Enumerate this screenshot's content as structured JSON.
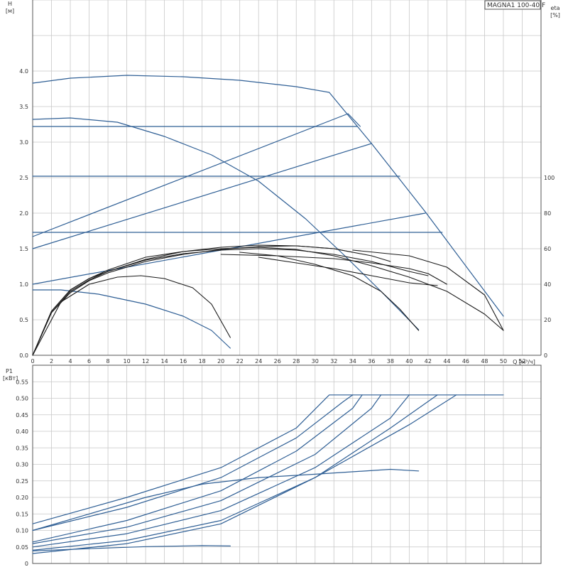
{
  "model_label": "MAGNA1 100-40 F",
  "colors": {
    "grid": "#c8c8c8",
    "axis": "#555555",
    "curve_blue": "#2f5f95",
    "curve_dark": "#1a1a1a"
  },
  "chart_data": [
    {
      "type": "line",
      "panel": "head-and-efficiency",
      "xlabel": "Q [м³/ч]",
      "ylabel": "H [м]",
      "y2label": "eta [%]",
      "xlim": [
        0,
        54
      ],
      "ylim": [
        0,
        5.0
      ],
      "y2lim": [
        0,
        200
      ],
      "x_ticks": [
        "0",
        "2",
        "4",
        "6",
        "8",
        "10",
        "12",
        "14",
        "16",
        "18",
        "20",
        "22",
        "24",
        "26",
        "28",
        "30",
        "32",
        "34",
        "36",
        "38",
        "40",
        "42",
        "44",
        "46",
        "48",
        "50",
        "52"
      ],
      "y_ticks": [
        "0.0",
        "0.5",
        "1.0",
        "1.5",
        "2.0",
        "2.5",
        "3.0",
        "3.5",
        "4.0"
      ],
      "y2_ticks": [
        "0",
        "20",
        "40",
        "60",
        "80",
        "100"
      ],
      "series": [
        {
          "color": "blue",
          "points": [
            [
              0,
              3.83
            ],
            [
              4,
              3.9
            ],
            [
              10,
              3.94
            ],
            [
              16,
              3.92
            ],
            [
              22,
              3.87
            ],
            [
              28,
              3.78
            ],
            [
              31.5,
              3.7
            ],
            [
              36,
              2.98
            ],
            [
              41.7,
              2.02
            ],
            [
              50,
              0.55
            ]
          ]
        },
        {
          "color": "blue",
          "points": [
            [
              0,
              3.32
            ],
            [
              4,
              3.34
            ],
            [
              9,
              3.28
            ],
            [
              14,
              3.08
            ],
            [
              19,
              2.82
            ],
            [
              24,
              2.45
            ],
            [
              29,
              1.92
            ],
            [
              33,
              1.42
            ],
            [
              37,
              0.9
            ],
            [
              41,
              0.36
            ]
          ]
        },
        {
          "color": "blue",
          "points": [
            [
              0,
              0.92
            ],
            [
              3,
              0.92
            ],
            [
              7,
              0.86
            ],
            [
              12,
              0.72
            ],
            [
              16,
              0.55
            ],
            [
              19,
              0.35
            ],
            [
              21,
              0.1
            ]
          ]
        },
        {
          "color": "blue",
          "points": [
            [
              0,
              3.22
            ],
            [
              34.5,
              3.22
            ]
          ]
        },
        {
          "color": "blue",
          "points": [
            [
              0,
              2.52
            ],
            [
              39,
              2.52
            ]
          ]
        },
        {
          "color": "blue",
          "points": [
            [
              0,
              1.73
            ],
            [
              43.5,
              1.73
            ]
          ]
        },
        {
          "color": "blue",
          "points": [
            [
              0,
              1.67
            ],
            [
              33.5,
              3.4
            ],
            [
              34.8,
              3.22
            ]
          ]
        },
        {
          "color": "blue",
          "points": [
            [
              0,
              1.5
            ],
            [
              36,
              2.98
            ]
          ]
        },
        {
          "color": "blue",
          "points": [
            [
              0,
              1.0
            ],
            [
              41.7,
              2.0
            ]
          ]
        },
        {
          "color": "dark",
          "points": [
            [
              0,
              0.0
            ],
            [
              2,
              0.62
            ],
            [
              4,
              0.92
            ],
            [
              6,
              1.08
            ],
            [
              8,
              1.2
            ],
            [
              12,
              1.38
            ],
            [
              16,
              1.46
            ],
            [
              20,
              1.5
            ],
            [
              24,
              1.52
            ],
            [
              28,
              1.49
            ],
            [
              32,
              1.4
            ],
            [
              36,
              1.26
            ],
            [
              40,
              1.1
            ],
            [
              44,
              0.9
            ],
            [
              48,
              0.58
            ],
            [
              50,
              0.35
            ]
          ]
        },
        {
          "color": "dark",
          "points": [
            [
              0,
              0.0
            ],
            [
              2,
              0.6
            ],
            [
              4,
              0.9
            ],
            [
              6,
              1.06
            ],
            [
              8,
              1.18
            ],
            [
              12,
              1.35
            ],
            [
              16,
              1.46
            ],
            [
              20,
              1.52
            ],
            [
              24,
              1.55
            ],
            [
              28,
              1.54
            ],
            [
              32,
              1.5
            ],
            [
              36,
              1.4
            ],
            [
              38,
              1.32
            ]
          ]
        },
        {
          "color": "dark",
          "points": [
            [
              0,
              0.0
            ],
            [
              2,
              0.6
            ],
            [
              4,
              0.88
            ],
            [
              6,
              1.05
            ],
            [
              8,
              1.16
            ],
            [
              12,
              1.32
            ],
            [
              16,
              1.42
            ],
            [
              20,
              1.49
            ],
            [
              24,
              1.53
            ],
            [
              28,
              1.54
            ],
            [
              32,
              1.5
            ],
            [
              34,
              1.45
            ]
          ]
        },
        {
          "color": "dark",
          "points": [
            [
              0,
              0.0
            ],
            [
              2,
              0.62
            ],
            [
              4,
              0.92
            ],
            [
              6,
              1.08
            ],
            [
              8,
              1.18
            ],
            [
              12,
              1.34
            ],
            [
              16,
              1.43
            ],
            [
              20,
              1.48
            ],
            [
              24,
              1.5
            ],
            [
              28,
              1.48
            ],
            [
              32,
              1.42
            ],
            [
              36,
              1.32
            ],
            [
              40,
              1.18
            ],
            [
              42,
              1.12
            ]
          ]
        },
        {
          "color": "dark",
          "points": [
            [
              0,
              0.0
            ],
            [
              3,
              0.75
            ],
            [
              6,
              1.0
            ],
            [
              9,
              1.1
            ],
            [
              11.5,
              1.12
            ],
            [
              14,
              1.08
            ],
            [
              17,
              0.95
            ],
            [
              19,
              0.72
            ],
            [
              21,
              0.25
            ]
          ]
        },
        {
          "color": "dark",
          "points": [
            [
              22,
              1.45
            ],
            [
              26,
              1.4
            ],
            [
              30,
              1.28
            ],
            [
              34,
              1.12
            ],
            [
              37,
              0.9
            ],
            [
              39,
              0.65
            ],
            [
              41,
              0.35
            ]
          ]
        },
        {
          "color": "dark",
          "points": [
            [
              24,
              1.38
            ],
            [
              28,
              1.3
            ],
            [
              32,
              1.22
            ],
            [
              36,
              1.12
            ],
            [
              40,
              1.02
            ],
            [
              43,
              0.98
            ]
          ]
        },
        {
          "color": "dark",
          "points": [
            [
              20,
              1.42
            ],
            [
              26,
              1.4
            ],
            [
              32,
              1.36
            ],
            [
              36,
              1.3
            ],
            [
              40,
              1.22
            ],
            [
              42,
              1.15
            ],
            [
              44,
              1.0
            ]
          ]
        },
        {
          "color": "dark",
          "points": [
            [
              34,
              1.48
            ],
            [
              40,
              1.4
            ],
            [
              44,
              1.24
            ],
            [
              48,
              0.85
            ],
            [
              50,
              0.35
            ]
          ]
        }
      ]
    },
    {
      "type": "line",
      "panel": "power",
      "xlabel": "Q [м³/ч]",
      "ylabel": "P1 [кВт]",
      "xlim": [
        0,
        54
      ],
      "ylim": [
        0,
        0.6
      ],
      "y_ticks": [
        "0",
        "0.05",
        "0.10",
        "0.15",
        "0.20",
        "0.25",
        "0.30",
        "0.35",
        "0.40",
        "0.45",
        "0.50",
        "0.55"
      ],
      "series": [
        {
          "color": "blue",
          "points": [
            [
              0,
              0.12
            ],
            [
              10,
              0.2
            ],
            [
              20,
              0.29
            ],
            [
              28,
              0.41
            ],
            [
              31.5,
              0.51
            ],
            [
              50,
              0.51
            ]
          ]
        },
        {
          "color": "blue",
          "points": [
            [
              0,
              0.1
            ],
            [
              10,
              0.17
            ],
            [
              20,
              0.26
            ],
            [
              28,
              0.38
            ],
            [
              33,
              0.49
            ],
            [
              34,
              0.51
            ]
          ]
        },
        {
          "color": "blue",
          "points": [
            [
              0,
              0.065
            ],
            [
              10,
              0.13
            ],
            [
              20,
              0.22
            ],
            [
              28,
              0.34
            ],
            [
              34,
              0.47
            ],
            [
              35,
              0.51
            ]
          ]
        },
        {
          "color": "blue",
          "points": [
            [
              0,
              0.06
            ],
            [
              10,
              0.11
            ],
            [
              20,
              0.19
            ],
            [
              30,
              0.33
            ],
            [
              36,
              0.47
            ],
            [
              37,
              0.51
            ]
          ]
        },
        {
          "color": "blue",
          "points": [
            [
              0,
              0.05
            ],
            [
              10,
              0.09
            ],
            [
              20,
              0.16
            ],
            [
              30,
              0.29
            ],
            [
              38,
              0.44
            ],
            [
              40,
              0.51
            ]
          ]
        },
        {
          "color": "blue",
          "points": [
            [
              0,
              0.04
            ],
            [
              10,
              0.07
            ],
            [
              20,
              0.13
            ],
            [
              30,
              0.26
            ],
            [
              38,
              0.41
            ],
            [
              43,
              0.51
            ]
          ]
        },
        {
          "color": "blue",
          "points": [
            [
              0,
              0.03
            ],
            [
              10,
              0.06
            ],
            [
              20,
              0.12
            ],
            [
              30,
              0.26
            ],
            [
              40,
              0.42
            ],
            [
              45,
              0.51
            ]
          ]
        },
        {
          "color": "blue",
          "points": [
            [
              0,
              0.1
            ],
            [
              6,
              0.15
            ],
            [
              12,
              0.2
            ],
            [
              18,
              0.24
            ],
            [
              24,
              0.26
            ],
            [
              30,
              0.27
            ],
            [
              38,
              0.285
            ],
            [
              41,
              0.28
            ]
          ]
        },
        {
          "color": "blue",
          "points": [
            [
              0,
              0.038
            ],
            [
              6,
              0.045
            ],
            [
              12,
              0.051
            ],
            [
              18,
              0.054
            ],
            [
              21,
              0.053
            ]
          ]
        }
      ]
    }
  ]
}
